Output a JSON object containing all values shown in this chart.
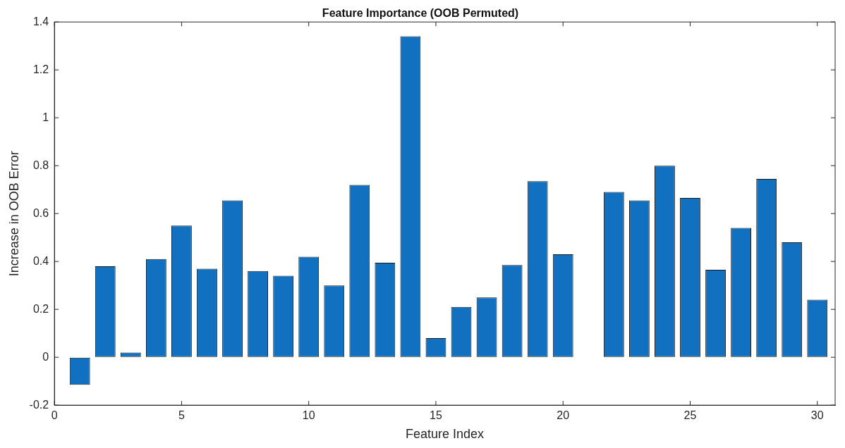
{
  "chart_data": {
    "type": "bar",
    "title": "Feature Importance (OOB Permuted)",
    "xlabel": "Feature Index",
    "ylabel": "Increase in OOB Error",
    "x": [
      1,
      2,
      3,
      4,
      5,
      6,
      7,
      8,
      9,
      10,
      11,
      12,
      13,
      14,
      15,
      16,
      17,
      18,
      19,
      20,
      21,
      22,
      23,
      24,
      25,
      26,
      27,
      28,
      29,
      30
    ],
    "values": [
      -0.115,
      0.38,
      0.02,
      0.41,
      0.55,
      0.37,
      0.655,
      0.36,
      0.34,
      0.42,
      0.3,
      0.72,
      0.395,
      1.34,
      0.08,
      0.21,
      0.25,
      0.385,
      0.735,
      0.43,
      0,
      0.69,
      0.655,
      0.8,
      0.665,
      0.365,
      0.54,
      0.745,
      0.48,
      0.24
    ],
    "color": "#1170c0",
    "xlim": [
      0,
      30.7
    ],
    "xticks": [
      0,
      5,
      10,
      15,
      20,
      25,
      30
    ],
    "ylim": [
      -0.2,
      1.4
    ],
    "yticks": [
      -0.2,
      0,
      0.2,
      0.4,
      0.6,
      0.8,
      1,
      1.2,
      1.4
    ],
    "grid": false,
    "legend": false
  }
}
